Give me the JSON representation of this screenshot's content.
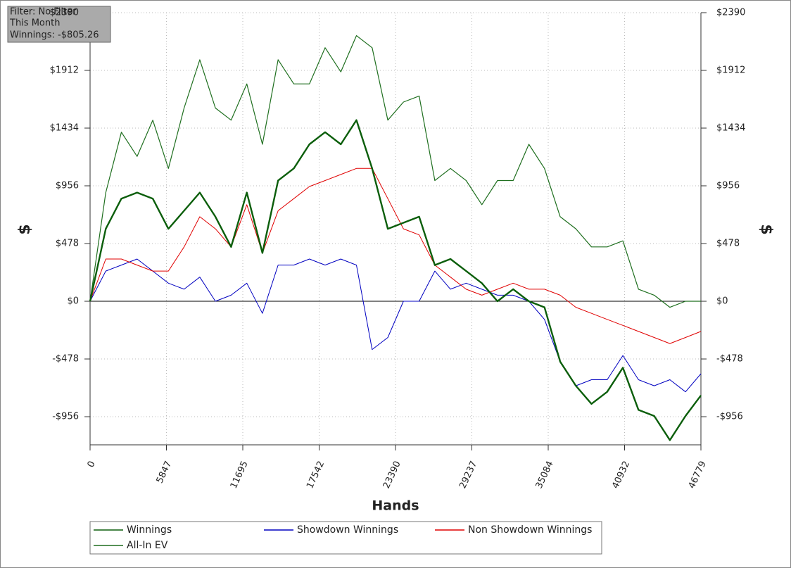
{
  "chart_data": {
    "type": "line",
    "annotations": [
      "Filter: No Filter",
      "This Month",
      "Winnings: -$805.26"
    ],
    "xlabel": "Hands",
    "ylabel": "$",
    "y2label": "$",
    "x": [
      0,
      1200,
      2400,
      3600,
      4800,
      6000,
      7200,
      8400,
      9600,
      10800,
      12000,
      13200,
      14400,
      15600,
      16800,
      18000,
      19200,
      20400,
      21600,
      22800,
      24000,
      25200,
      26400,
      27600,
      28800,
      30000,
      31200,
      32400,
      33600,
      34800,
      36000,
      37200,
      38400,
      39600,
      40800,
      42000,
      43200,
      44400,
      45600,
      46779
    ],
    "series": [
      {
        "name": "Winnings",
        "color": "#0b5e0b",
        "values": [
          0,
          600,
          850,
          900,
          850,
          600,
          750,
          900,
          700,
          450,
          900,
          400,
          1000,
          1100,
          1300,
          1400,
          1300,
          1500,
          1100,
          600,
          650,
          700,
          300,
          350,
          250,
          150,
          0,
          100,
          0,
          -50,
          -500,
          -700,
          -850,
          -750,
          -550,
          -900,
          -950,
          -1150,
          -950,
          -780
        ]
      },
      {
        "name": "Showdown Winnings",
        "color": "#0000c0",
        "values": [
          0,
          250,
          300,
          350,
          250,
          150,
          100,
          200,
          0,
          50,
          150,
          -100,
          300,
          300,
          350,
          300,
          350,
          300,
          -400,
          -300,
          0,
          0,
          250,
          100,
          150,
          100,
          50,
          50,
          0,
          -150,
          -500,
          -700,
          -650,
          -650,
          -450,
          -650,
          -700,
          -650,
          -750,
          -600
        ]
      },
      {
        "name": "Non Showdown Winnings",
        "color": "#e00000",
        "values": [
          0,
          350,
          350,
          300,
          250,
          250,
          450,
          700,
          600,
          450,
          800,
          400,
          750,
          850,
          950,
          1000,
          1050,
          1100,
          1100,
          850,
          600,
          550,
          300,
          200,
          100,
          50,
          100,
          150,
          100,
          100,
          50,
          -50,
          -100,
          -150,
          -200,
          -250,
          -300,
          -350,
          -300,
          -250
        ]
      },
      {
        "name": "All-In EV",
        "color": "#1f6f1f",
        "values": [
          0,
          900,
          1400,
          1200,
          1500,
          1100,
          1600,
          2000,
          1600,
          1500,
          1800,
          1300,
          2000,
          1800,
          1800,
          2100,
          1900,
          2200,
          2100,
          1500,
          1650,
          1700,
          1000,
          1100,
          1000,
          800,
          1000,
          1000,
          1300,
          1100,
          700,
          600,
          450,
          450,
          500,
          100,
          50,
          -50,
          0,
          0
        ]
      }
    ],
    "xlim": [
      0,
      46779
    ],
    "xticks": [
      0,
      5847,
      11695,
      17542,
      23390,
      29237,
      35084,
      40932,
      46779
    ],
    "ylim": [
      -1189,
      2390
    ],
    "yticks": [
      {
        "value": -956,
        "label": "-$956"
      },
      {
        "value": -478,
        "label": "-$478"
      },
      {
        "value": 0,
        "label": "$0"
      },
      {
        "value": 478,
        "label": "$478"
      },
      {
        "value": 956,
        "label": "$956"
      },
      {
        "value": 1434,
        "label": "$1434"
      },
      {
        "value": 1912,
        "label": "$1912"
      },
      {
        "value": 2390,
        "label": "$2390"
      }
    ],
    "y2lim": [
      -1189,
      2390
    ],
    "y2ticks": [
      {
        "value": -956,
        "label": "-$956"
      },
      {
        "value": -478,
        "label": "-$478"
      },
      {
        "value": 0,
        "label": "$0"
      },
      {
        "value": 478,
        "label": "$478"
      },
      {
        "value": 956,
        "label": "$956"
      },
      {
        "value": 1434,
        "label": "$1434"
      },
      {
        "value": 1912,
        "label": "$1912"
      },
      {
        "value": 2390,
        "label": "$2390"
      }
    ],
    "grid": true
  }
}
